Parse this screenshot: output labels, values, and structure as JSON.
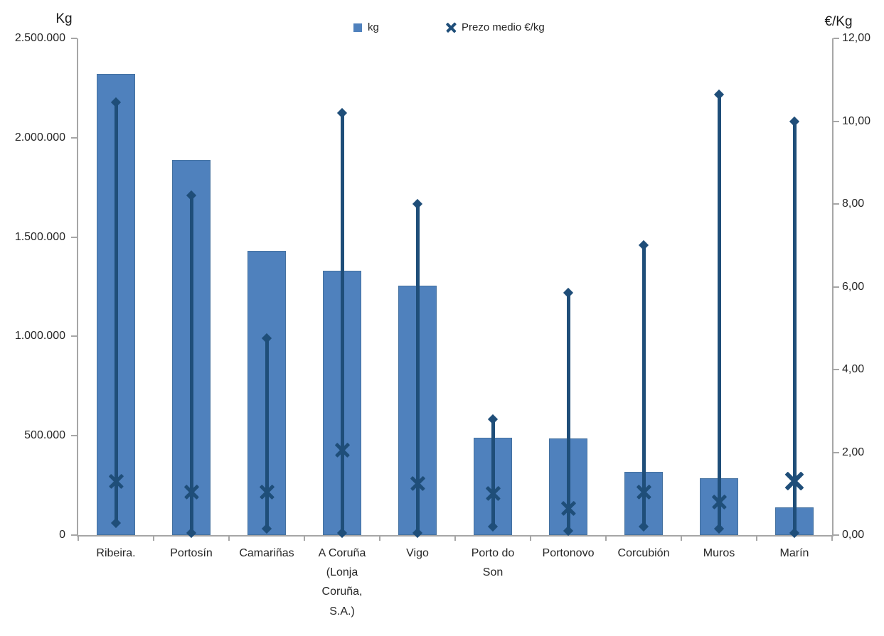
{
  "chart_data": {
    "type": "bar",
    "subtype": "combo-bar-with-highlow-price-markers",
    "title": "",
    "grid": false,
    "legend_position": "top-center",
    "categories": [
      "Ribeira.",
      "Portosín",
      "Camariñas",
      "A Coruña (Lonja Coruña, S.A.)",
      "Vigo",
      "Porto do Son",
      "Portonovo",
      "Corcubión",
      "Muros",
      "Marín"
    ],
    "series": [
      {
        "name": "kg",
        "type": "bar",
        "axis": "left",
        "color": "#4f81bd",
        "values": [
          2320000,
          1890000,
          1430000,
          1330000,
          1255000,
          490000,
          487000,
          320000,
          285000,
          140000
        ]
      },
      {
        "name": "Prezo medio €/kg",
        "type": "scatter",
        "marker": "x",
        "axis": "right",
        "color": "#1f4e79",
        "values": [
          1.3,
          1.05,
          1.05,
          2.05,
          1.25,
          1.0,
          0.65,
          1.05,
          0.8,
          1.3
        ],
        "marker_sizes": [
          21,
          21,
          21,
          21,
          21,
          21,
          21,
          21,
          21,
          27
        ]
      }
    ],
    "price_range_whiskers": {
      "axis": "right",
      "color": "#1f4e79",
      "end_marker": "diamond",
      "high": [
        10.45,
        8.2,
        4.75,
        10.2,
        8.0,
        2.8,
        5.85,
        7.0,
        10.65,
        10.0
      ],
      "low": [
        0.3,
        0.05,
        0.15,
        0.05,
        0.05,
        0.2,
        0.1,
        0.2,
        0.15,
        0.05
      ]
    },
    "left_axis": {
      "title": "Kg",
      "min": 0,
      "max": 2500000,
      "tick_labels": [
        "2.500.000",
        "2.000.000",
        "1.500.000",
        "1.000.000",
        "500.000",
        "0"
      ]
    },
    "right_axis": {
      "title": "€/Kg",
      "min": 0,
      "max": 12,
      "tick_labels": [
        "12,00",
        "10,00",
        "8,00",
        "6,00",
        "4,00",
        "2,00",
        "0,00"
      ]
    },
    "legend": [
      {
        "label": "kg",
        "marker": "square",
        "color": "#4f81bd"
      },
      {
        "label": "Prezo medio €/kg",
        "marker": "x",
        "color": "#1f4e79"
      }
    ],
    "colors": {
      "bar_fill": "#4f81bd",
      "bar_border": "#44719f",
      "price_line": "#1f4e79",
      "axis_line": "#a6a6a6",
      "text": "#262626"
    }
  }
}
